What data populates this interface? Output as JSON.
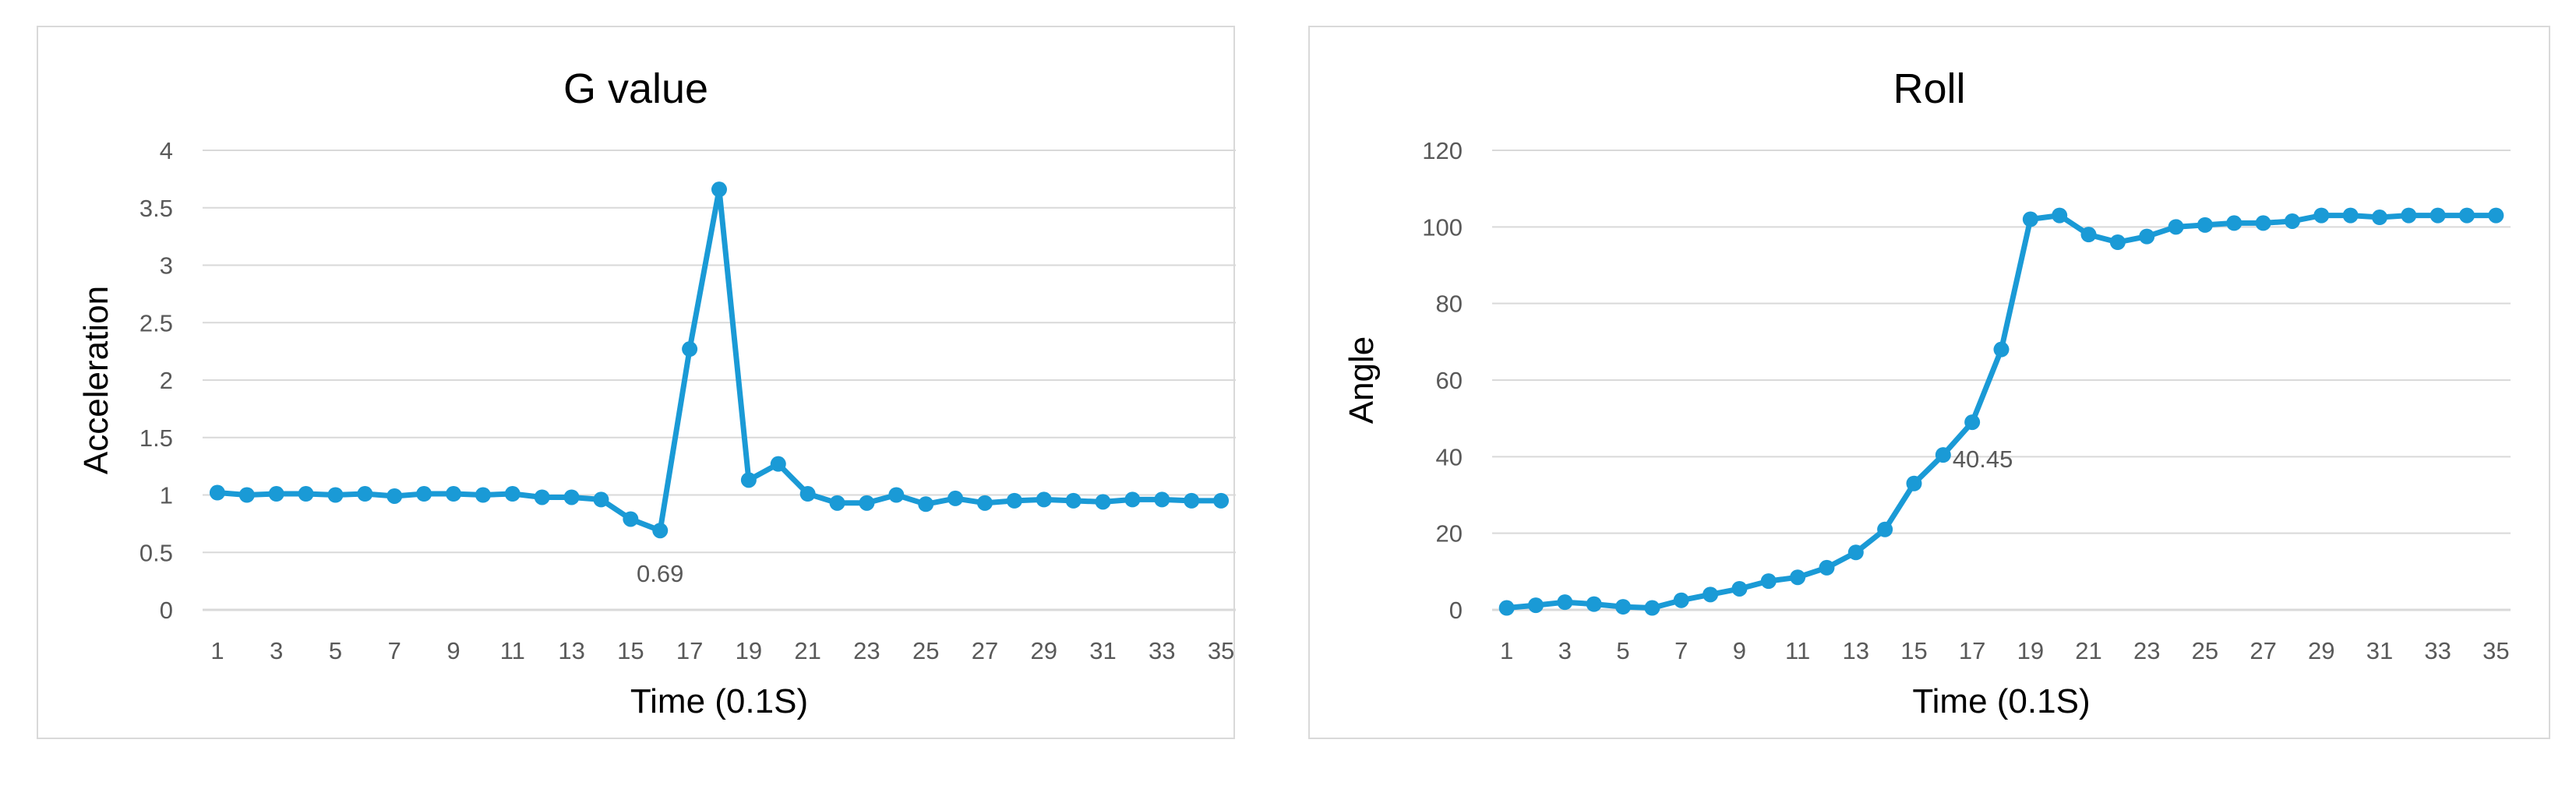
{
  "chart_data": [
    {
      "type": "line",
      "title": "G value",
      "xlabel": "Time (0.1S)",
      "ylabel": "Acceleration",
      "ylim": [
        0,
        4
      ],
      "yticks": [
        "0",
        "0.5",
        "1",
        "1.5",
        "2",
        "2.5",
        "3",
        "3.5",
        "4"
      ],
      "xtick_labels": [
        "1",
        "3",
        "5",
        "7",
        "9",
        "11",
        "13",
        "15",
        "17",
        "19",
        "21",
        "23",
        "25",
        "27",
        "29",
        "31",
        "33",
        "35"
      ],
      "grid": true,
      "legend": "none",
      "x": [
        1,
        2,
        3,
        4,
        5,
        6,
        7,
        8,
        9,
        10,
        11,
        12,
        13,
        14,
        15,
        16,
        17,
        18,
        19,
        20,
        21,
        22,
        23,
        24,
        25,
        26,
        27,
        28,
        29,
        30,
        31,
        32,
        33,
        34,
        35
      ],
      "series": [
        {
          "values": [
            1.02,
            1.0,
            1.01,
            1.01,
            1.0,
            1.01,
            0.99,
            1.01,
            1.01,
            1.0,
            1.01,
            0.98,
            0.98,
            0.96,
            0.79,
            0.69,
            2.27,
            3.66,
            1.13,
            1.27,
            1.01,
            0.93,
            0.93,
            1.0,
            0.92,
            0.97,
            0.93,
            0.95,
            0.96,
            0.95,
            0.94,
            0.96,
            0.96,
            0.95,
            0.95
          ]
        }
      ],
      "annotations": [
        {
          "x": 16,
          "y": 0.69,
          "text": "0.69"
        }
      ]
    },
    {
      "type": "line",
      "title": "Roll",
      "xlabel": "Time (0.1S)",
      "ylabel": "Angle",
      "ylim": [
        0,
        120
      ],
      "yticks": [
        "0",
        "20",
        "40",
        "60",
        "80",
        "100",
        "120"
      ],
      "xtick_labels": [
        "1",
        "3",
        "5",
        "7",
        "9",
        "11",
        "13",
        "15",
        "17",
        "19",
        "21",
        "23",
        "25",
        "27",
        "29",
        "31",
        "33",
        "35"
      ],
      "grid": true,
      "legend": "none",
      "x": [
        1,
        2,
        3,
        4,
        5,
        6,
        7,
        8,
        9,
        10,
        11,
        12,
        13,
        14,
        15,
        16,
        17,
        18,
        19,
        20,
        21,
        22,
        23,
        24,
        25,
        26,
        27,
        28,
        29,
        30,
        31,
        32,
        33,
        34,
        35
      ],
      "series": [
        {
          "values": [
            0.5,
            1.2,
            2.0,
            1.5,
            0.8,
            0.5,
            2.5,
            4.0,
            5.5,
            7.5,
            8.5,
            11.0,
            15.0,
            21.0,
            33.0,
            40.45,
            49.0,
            68.0,
            102.0,
            103.0,
            98.0,
            96.0,
            97.5,
            100.0,
            100.5,
            101.0,
            101.0,
            101.5,
            103.0,
            103.0,
            102.5,
            103.0,
            103.0,
            103.0,
            103.0
          ]
        }
      ],
      "annotations": [
        {
          "x": 16,
          "y": 40.45,
          "text": "40.45"
        }
      ]
    }
  ],
  "colors": {
    "line": "#1a9ad6",
    "grid": "#d9d9d9",
    "axis": "#d9d9d9",
    "tick_text": "#595959",
    "title_text": "#000000",
    "frame": "#d9d9d9"
  }
}
